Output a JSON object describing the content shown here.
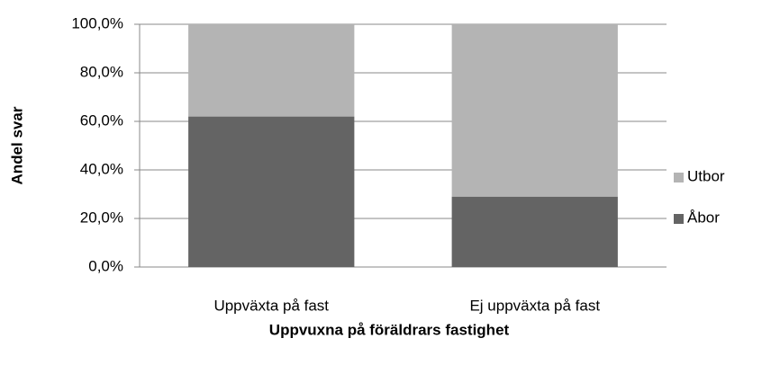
{
  "chart_data": {
    "type": "stacked_bar",
    "categories": [
      "Uppväxta på fast",
      "Ej uppväxta på fast"
    ],
    "series": [
      {
        "name": "Åbor",
        "color": "#646464",
        "values": [
          62,
          29
        ]
      },
      {
        "name": "Utbor",
        "color": "#b4b4b4",
        "values": [
          38,
          71
        ]
      }
    ],
    "ylim": [
      0,
      100
    ],
    "yticks": [
      {
        "value": 0,
        "label": "0,0%"
      },
      {
        "value": 20,
        "label": "20,0%"
      },
      {
        "value": 40,
        "label": "40,0%"
      },
      {
        "value": 60,
        "label": "60,0%"
      },
      {
        "value": 80,
        "label": "80,0%"
      },
      {
        "value": 100,
        "label": "100,0%"
      }
    ],
    "y_label": "Andel svar",
    "x_label": "Uppvuxna på föräldrars fastighet",
    "grid": true,
    "legend": "right"
  }
}
